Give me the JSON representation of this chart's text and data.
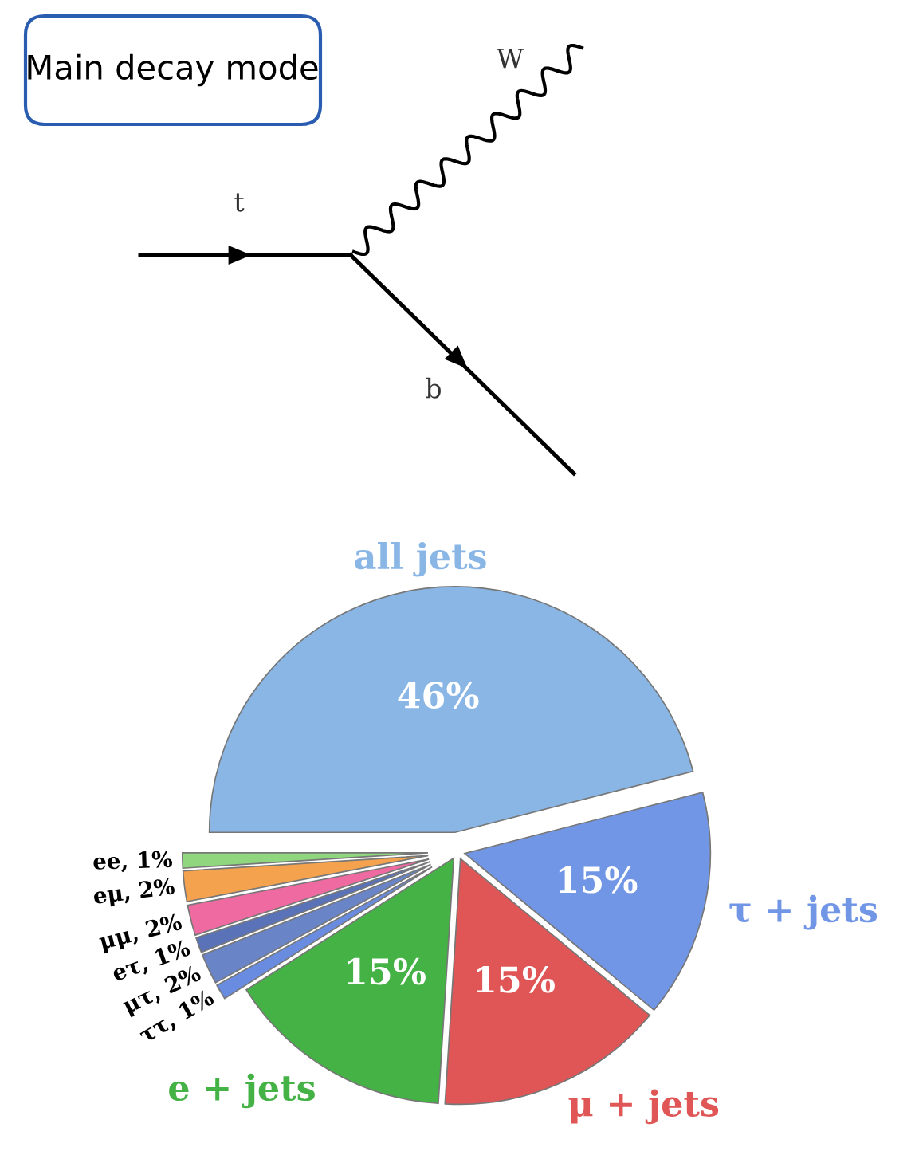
{
  "chart_data": {
    "type": "pie",
    "categories": [
      "all jets",
      "ee",
      "eμ",
      "μμ",
      "eτ",
      "μτ",
      "ττ",
      "e + jets",
      "μ + jets",
      "τ + jets"
    ],
    "values": [
      46,
      1,
      2,
      2,
      1,
      2,
      1,
      15,
      15,
      15
    ],
    "value_labels": [
      "46%",
      "1%",
      "2%",
      "2%",
      "1%",
      "2%",
      "1%",
      "15%",
      "15%",
      "15%"
    ],
    "colors": [
      "#8ab6e6",
      "#8fd67e",
      "#f4a24e",
      "#ee6aa0",
      "#5a72b8",
      "#6a84c8",
      "#6a8ce0",
      "#44b244",
      "#e05656",
      "#7296e6"
    ],
    "annotations": [
      "Main decay mode",
      "t",
      "W",
      "b"
    ],
    "legend": false
  }
}
